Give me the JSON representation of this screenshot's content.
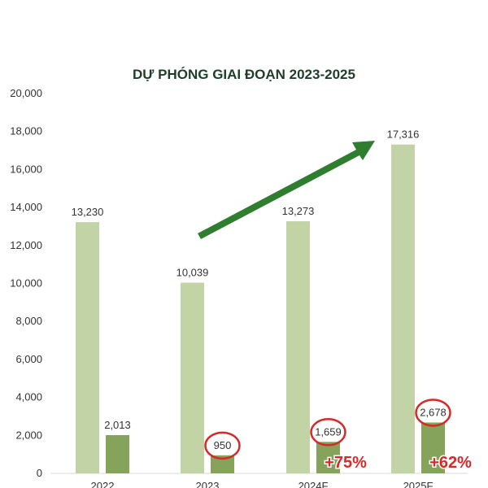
{
  "chart_data": {
    "type": "bar",
    "title": "DỰ PHÓNG GIAI ĐOẠN 2023-2025",
    "categories": [
      "2022",
      "2023",
      "2024F",
      "2025F"
    ],
    "series": [
      {
        "values": [
          13230,
          10039,
          13273,
          17316
        ],
        "labels": [
          "13,230",
          "10,039",
          "13,273",
          "17,316"
        ],
        "color": "#c2d3a5"
      },
      {
        "values": [
          2013,
          950,
          1659,
          2678
        ],
        "labels": [
          "2,013",
          "950",
          "1,659",
          "2,678"
        ],
        "color": "#86a35b"
      }
    ],
    "ylim": [
      0,
      20000
    ],
    "yticks": [
      "0",
      "2,000",
      "4,000",
      "6,000",
      "8,000",
      "10,000",
      "12,000",
      "14,000",
      "16,000",
      "18,000",
      "20,000"
    ],
    "circled_labels": [
      "950",
      "1,659",
      "2,678"
    ],
    "annotations": [
      {
        "text": "+75%",
        "category": "2024F"
      },
      {
        "text": "+62%",
        "category": "2025F"
      }
    ],
    "arrow": "up-right",
    "grid": false
  },
  "colors": {
    "title": "#1f3d2b",
    "arrow": "#2f7d2f",
    "circle": "#d42a2a",
    "growth": "#d42a2a"
  }
}
